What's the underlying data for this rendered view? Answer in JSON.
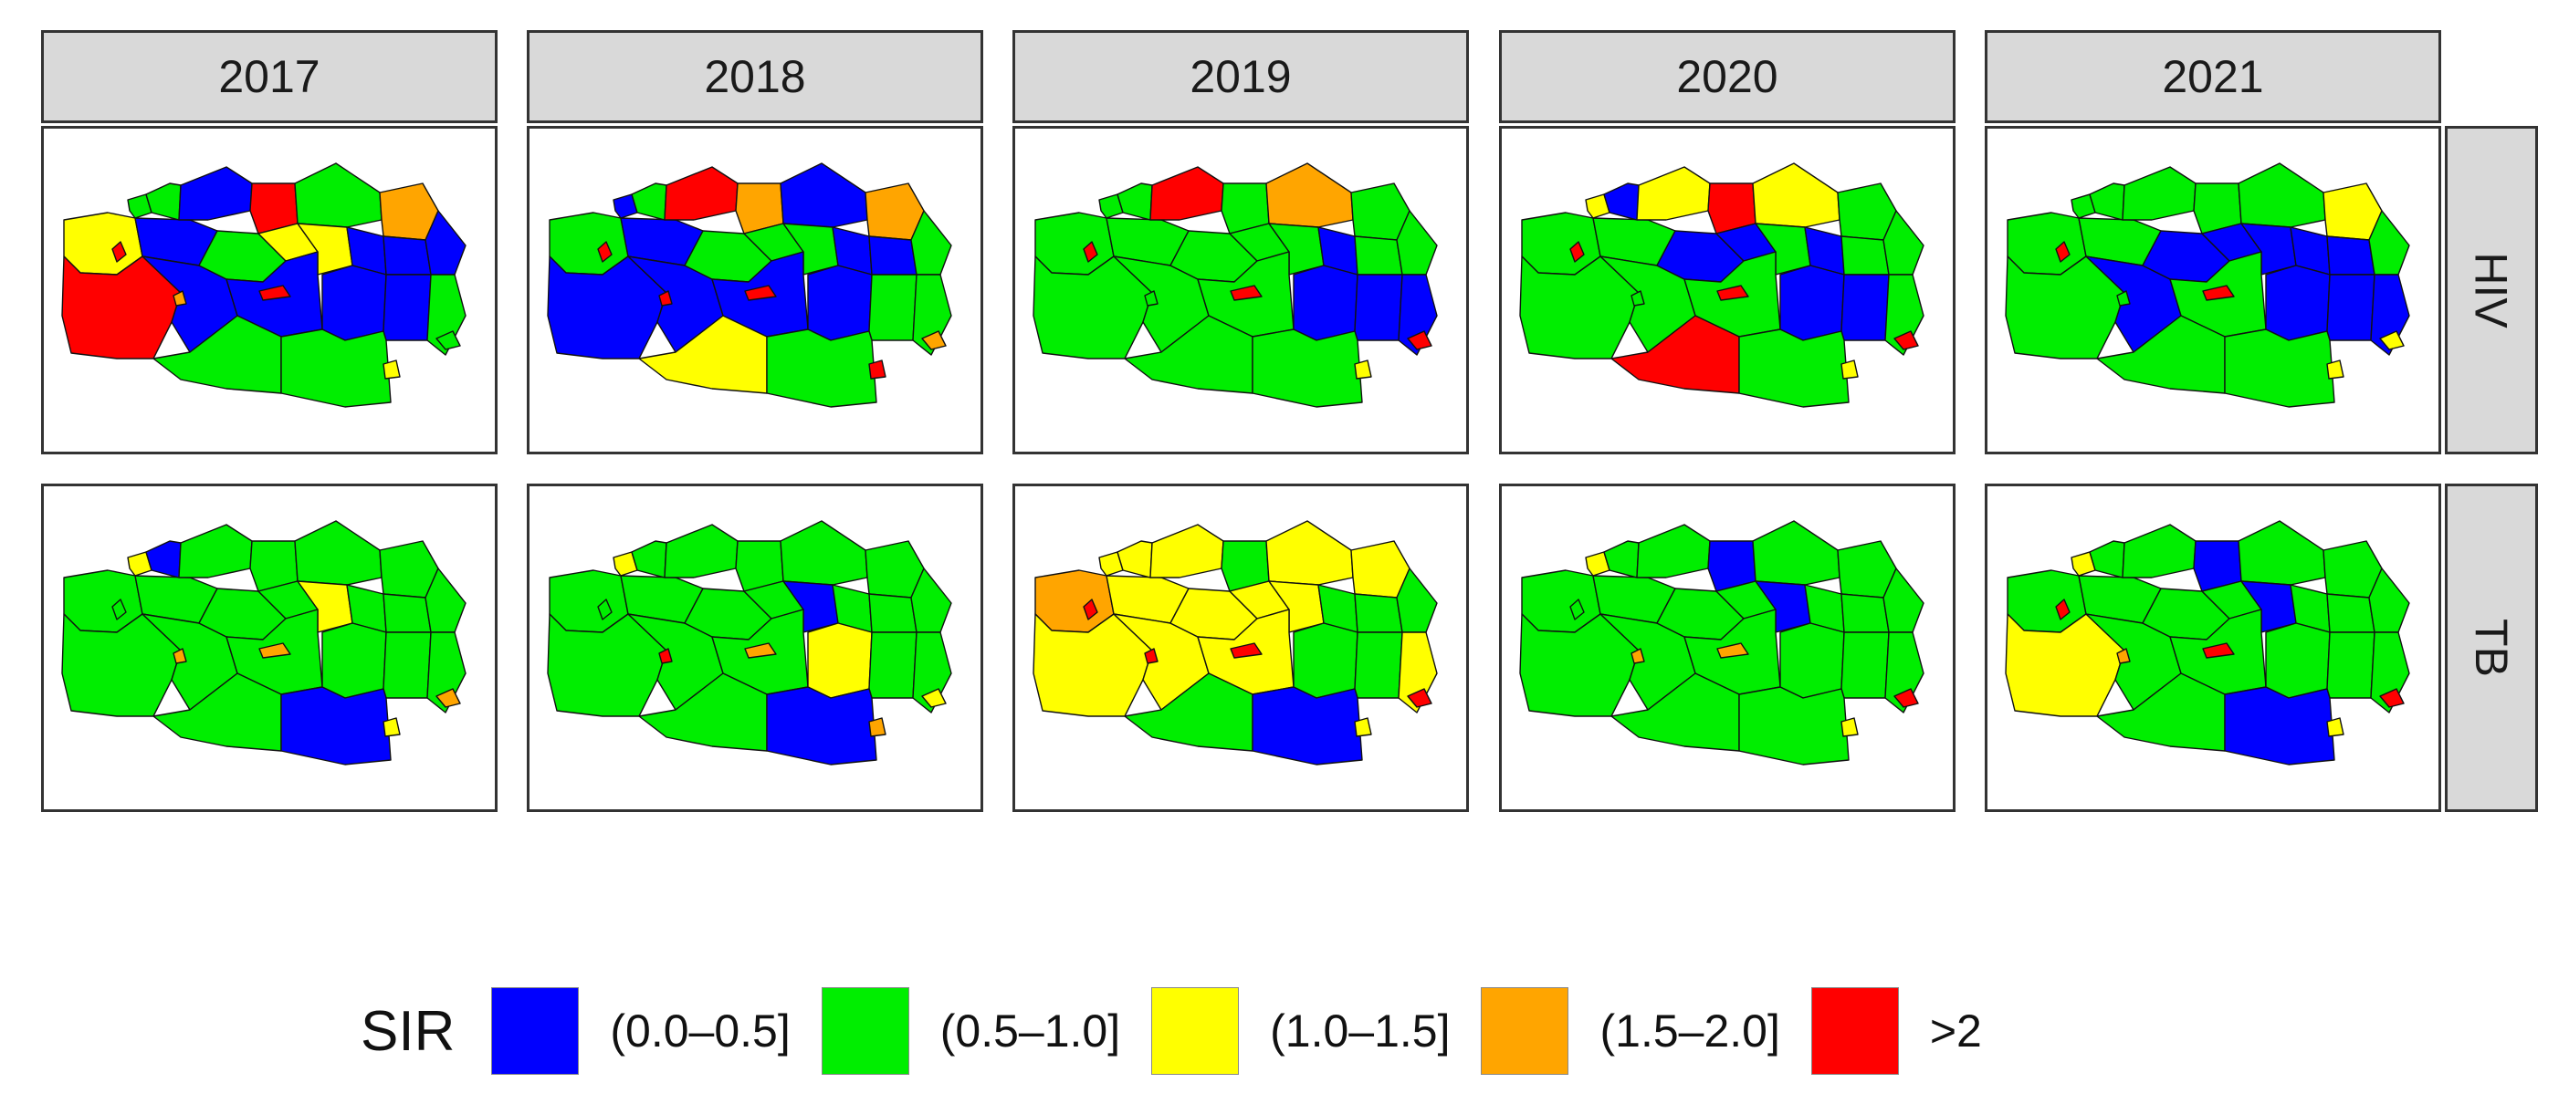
{
  "columns": [
    "2017",
    "2018",
    "2019",
    "2020",
    "2021"
  ],
  "rows": [
    "HIV",
    "TB"
  ],
  "legend": {
    "title": "SIR",
    "classes": [
      {
        "label": "(0.0–0.5]",
        "color": "#0000ff"
      },
      {
        "label": "(0.5–1.0]",
        "color": "#00ee00"
      },
      {
        "label": "(1.0–1.5]",
        "color": "#ffff00"
      },
      {
        "label": "(1.5–2.0]",
        "color": "#ffa500"
      },
      {
        "label": ">2",
        "color": "#ff0000"
      }
    ]
  },
  "region_classes": [
    [
      [
        2,
        1,
        0,
        1,
        0,
        4,
        1,
        3,
        4,
        0,
        1,
        2,
        2,
        0,
        0,
        0,
        0,
        0,
        0,
        1,
        1,
        1,
        4,
        4,
        3,
        2,
        1
      ],
      [
        1,
        0,
        0,
        1,
        4,
        3,
        0,
        3,
        0,
        0,
        1,
        1,
        1,
        0,
        0,
        1,
        0,
        0,
        1,
        1,
        2,
        1,
        4,
        4,
        4,
        4,
        3
      ],
      [
        1,
        1,
        1,
        1,
        4,
        1,
        3,
        1,
        1,
        1,
        1,
        1,
        1,
        0,
        1,
        1,
        1,
        0,
        0,
        0,
        1,
        1,
        4,
        4,
        1,
        2,
        4
      ],
      [
        1,
        2,
        1,
        0,
        2,
        4,
        2,
        1,
        1,
        1,
        0,
        0,
        1,
        0,
        1,
        1,
        1,
        0,
        0,
        1,
        4,
        1,
        4,
        4,
        1,
        2,
        4
      ],
      [
        1,
        1,
        1,
        1,
        1,
        1,
        1,
        2,
        1,
        0,
        0,
        0,
        0,
        0,
        0,
        1,
        1,
        0,
        0,
        0,
        1,
        1,
        4,
        4,
        1,
        2,
        2
      ]
    ],
    [
      [
        1,
        2,
        1,
        0,
        1,
        1,
        1,
        1,
        1,
        1,
        1,
        1,
        2,
        1,
        1,
        1,
        1,
        1,
        1,
        1,
        1,
        0,
        1,
        3,
        3,
        2,
        3
      ],
      [
        1,
        2,
        1,
        1,
        1,
        1,
        1,
        1,
        1,
        1,
        1,
        1,
        0,
        1,
        1,
        1,
        1,
        2,
        1,
        1,
        1,
        0,
        1,
        3,
        4,
        3,
        2
      ],
      [
        3,
        2,
        2,
        2,
        2,
        1,
        2,
        2,
        2,
        2,
        2,
        2,
        2,
        1,
        1,
        1,
        2,
        1,
        1,
        2,
        1,
        0,
        4,
        4,
        4,
        2,
        4
      ],
      [
        1,
        2,
        1,
        1,
        1,
        0,
        1,
        1,
        1,
        1,
        1,
        1,
        0,
        1,
        1,
        1,
        1,
        1,
        1,
        1,
        1,
        1,
        1,
        3,
        3,
        2,
        4
      ],
      [
        1,
        2,
        1,
        1,
        1,
        0,
        1,
        1,
        2,
        1,
        1,
        1,
        0,
        1,
        1,
        1,
        1,
        1,
        1,
        1,
        1,
        0,
        4,
        4,
        3,
        2,
        4
      ]
    ]
  ]
}
